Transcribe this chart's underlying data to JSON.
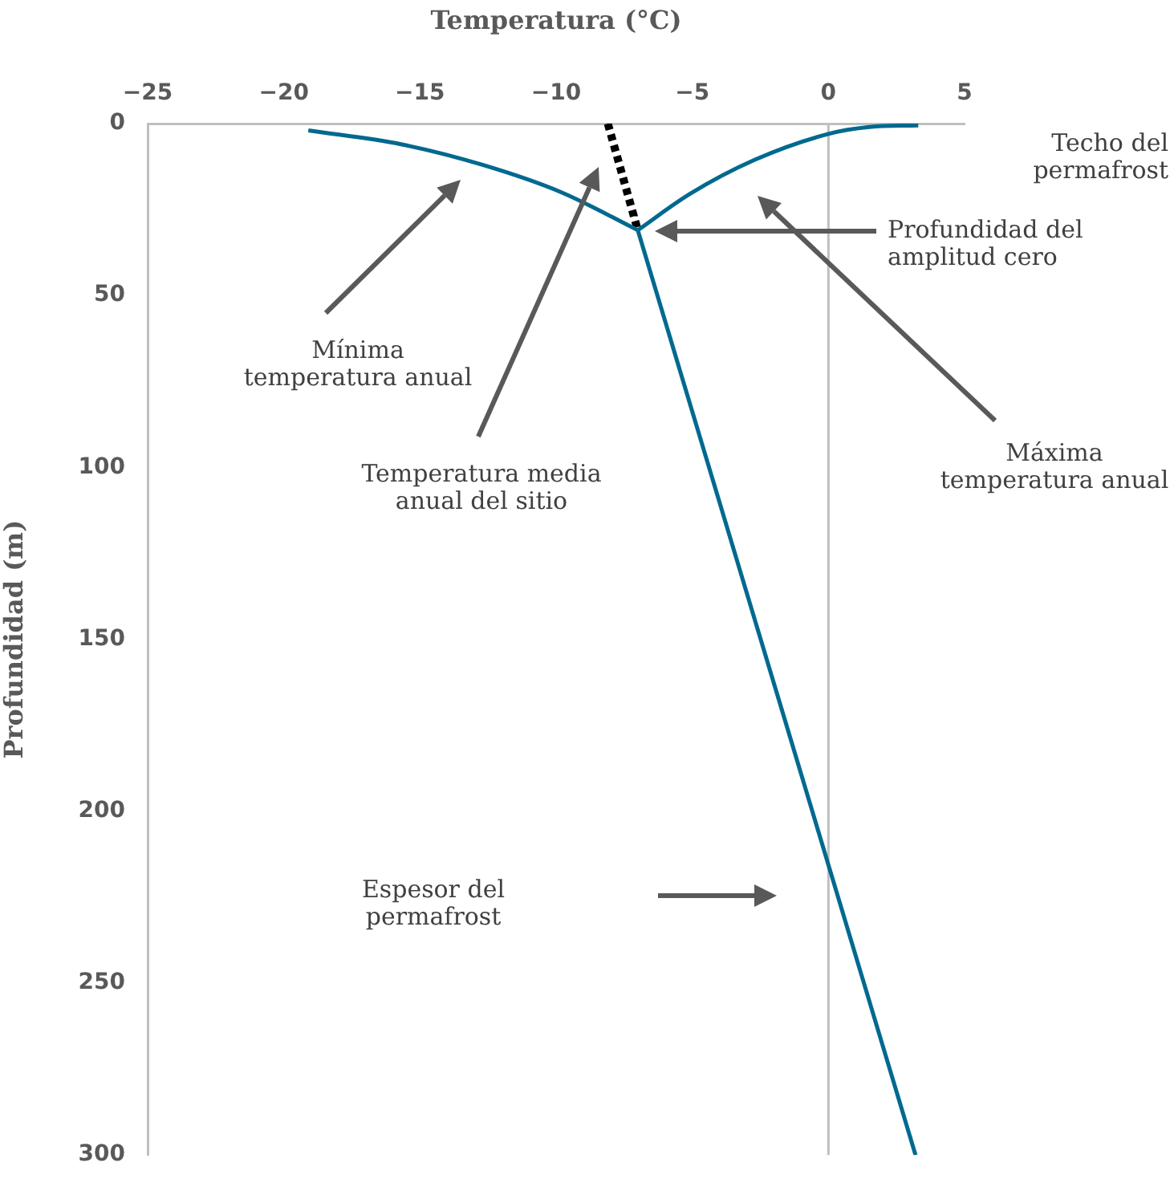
{
  "chart_data": {
    "type": "line",
    "xlabel": "Temperatura (°C)",
    "ylabel": "Profundidad (m)",
    "xlim": [
      -25,
      5
    ],
    "xticks": [
      -25,
      -20,
      -15,
      -10,
      -5,
      0,
      5
    ],
    "ylim": [
      300,
      0
    ],
    "yticks": [
      0,
      50,
      100,
      150,
      200,
      250,
      300
    ],
    "grid": false,
    "legend": false,
    "marker": "none",
    "series": [
      {
        "color": "#00698f",
        "x": [
          -19.1,
          -15.7,
          -12.7,
          -9.8,
          -7
        ],
        "values": [
          2,
          6,
          12,
          20,
          31
        ]
      },
      {
        "color": "#00698f",
        "x": [
          3.3,
          1.5,
          0,
          -2.7,
          -5.1,
          -7
        ],
        "values": [
          0.5,
          1,
          3,
          10.5,
          20.5,
          31
        ]
      },
      {
        "color": "#00698f",
        "x": [
          -7,
          3.2
        ],
        "values": [
          31,
          300
        ]
      },
      {
        "color": "#000000",
        "line_style": "dotted",
        "x": [
          -8.1,
          -7
        ],
        "values": [
          0,
          31
        ]
      }
    ],
    "ref_lines": [
      {
        "axis": "x",
        "value": 0,
        "color": "#bfbfbf"
      }
    ],
    "annotations": [
      "Techo del\npermafrost",
      "Profundidad del\namplitud cero",
      "Mínima\ntemperatura anual",
      "Temperatura media\nanual del sitio",
      "Máxima\ntemperatura anual",
      "Espesor del\npermafrost"
    ]
  }
}
